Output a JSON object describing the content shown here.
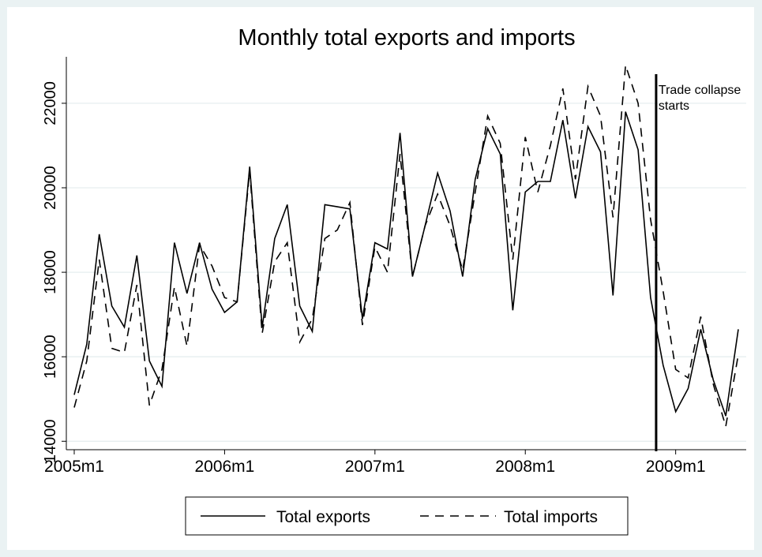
{
  "chart_data": {
    "type": "line",
    "title": "Monthly total exports and imports",
    "xlabel": "",
    "ylabel": "",
    "x_ticks": [
      "2005m1",
      "2006m1",
      "2007m1",
      "2008m1",
      "2009m1"
    ],
    "y_ticks": [
      14000,
      16000,
      18000,
      20000,
      22000
    ],
    "ylim": [
      13800,
      23100
    ],
    "xlim": [
      0,
      53
    ],
    "grid": true,
    "legend_position": "bottom",
    "categories": [
      "2005m1",
      "2005m2",
      "2005m3",
      "2005m4",
      "2005m5",
      "2005m6",
      "2005m7",
      "2005m8",
      "2005m9",
      "2005m10",
      "2005m11",
      "2005m12",
      "2006m1",
      "2006m2",
      "2006m3",
      "2006m4",
      "2006m5",
      "2006m6",
      "2006m7",
      "2006m8",
      "2006m9",
      "2006m10",
      "2006m11",
      "2006m12",
      "2007m1",
      "2007m2",
      "2007m3",
      "2007m4",
      "2007m5",
      "2007m6",
      "2007m7",
      "2007m8",
      "2007m9",
      "2007m10",
      "2007m11",
      "2007m12",
      "2008m1",
      "2008m2",
      "2008m3",
      "2008m4",
      "2008m5",
      "2008m6",
      "2008m7",
      "2008m8",
      "2008m9",
      "2008m10",
      "2008m11",
      "2008m12",
      "2009m1",
      "2009m2",
      "2009m3",
      "2009m4",
      "2009m5",
      "2009m6"
    ],
    "series": [
      {
        "name": "Total exports",
        "style": "solid",
        "values": [
          15100,
          16300,
          18900,
          17200,
          16700,
          18400,
          15900,
          15300,
          18700,
          17500,
          18700,
          17600,
          17050,
          17300,
          20500,
          16700,
          18800,
          19600,
          17200,
          16600,
          19600,
          19550,
          19500,
          16900,
          18700,
          18550,
          21300,
          17900,
          19100,
          20350,
          19450,
          17900,
          20200,
          21400,
          20800,
          17100,
          19900,
          20150,
          20150,
          21600,
          19750,
          21450,
          20850,
          17450,
          21800,
          20900,
          17400,
          15800,
          14700,
          15250,
          16650,
          15450,
          14600,
          16650
        ]
      },
      {
        "name": "Total imports",
        "style": "dashed",
        "values": [
          14800,
          15900,
          18300,
          16200,
          16100,
          17700,
          14850,
          15700,
          17650,
          16250,
          18650,
          18150,
          17400,
          17300,
          20400,
          16550,
          18250,
          18700,
          16350,
          16900,
          18800,
          19000,
          19650,
          16750,
          18600,
          18000,
          20800,
          17900,
          19100,
          19850,
          19100,
          18050,
          19900,
          21700,
          21050,
          18300,
          21200,
          19900,
          21000,
          22350,
          20200,
          22400,
          21700,
          19300,
          22900,
          22000,
          19250,
          17550,
          15700,
          15500,
          16950,
          15350,
          14350,
          16050
        ]
      }
    ],
    "annotation": {
      "label_line1": "Trade collapse",
      "label_line2": "starts",
      "x_index": 46
    }
  }
}
